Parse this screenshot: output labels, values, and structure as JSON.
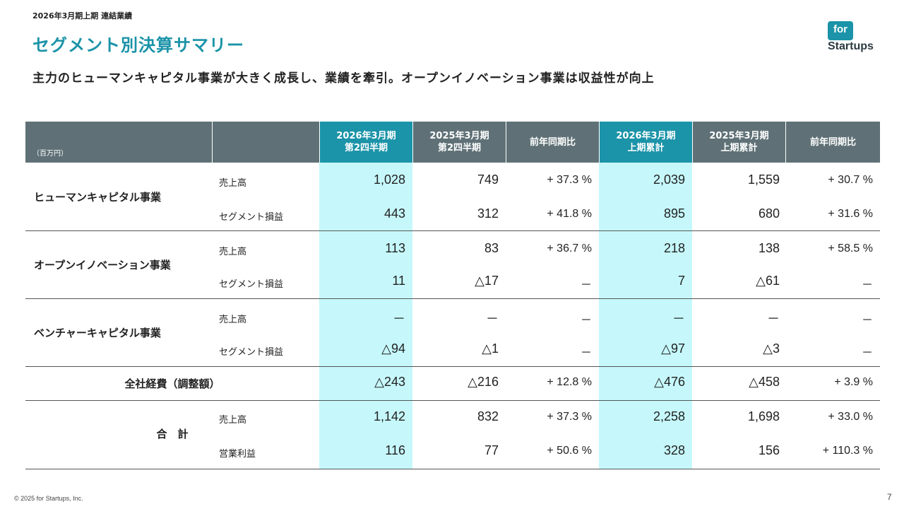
{
  "header": {
    "breadcrumb": "2026年3月期上期 連結業績",
    "title": "セグメント別決算サマリー",
    "subtitle": "主力のヒューマンキャピタル事業が大きく成長し、業績を牽引。オープンイノベーション事業は収益性が向上"
  },
  "logo": {
    "box_text": "for",
    "text": "Startups",
    "color": "#1b93a8"
  },
  "table": {
    "unit": "（百万円）",
    "columns": [
      "2026年3月期\n第2四半期",
      "2025年3月期\n第2四半期",
      "前年同期比",
      "2026年3月期\n上期累計",
      "2025年3月期\n上期累計",
      "前年同期比"
    ],
    "groups": [
      {
        "name": "ヒューマンキャピタル事業",
        "rows": [
          {
            "label": "売上高",
            "values": [
              "1,028",
              "749",
              "+ 37.3 %",
              "2,039",
              "1,559",
              "+ 30.7 %"
            ]
          },
          {
            "label": "セグメント損益",
            "values": [
              "443",
              "312",
              "+ 41.8 %",
              "895",
              "680",
              "+ 31.6 %"
            ]
          }
        ]
      },
      {
        "name": "オープンイノベーション事業",
        "rows": [
          {
            "label": "売上高",
            "values": [
              "113",
              "83",
              "+ 36.7 %",
              "218",
              "138",
              "+ 58.5 %"
            ]
          },
          {
            "label": "セグメント損益",
            "values": [
              "11",
              "△17",
              "－",
              "7",
              "△61",
              "－"
            ]
          }
        ]
      },
      {
        "name": "ベンチャーキャピタル事業",
        "rows": [
          {
            "label": "売上高",
            "values": [
              "－",
              "－",
              "－",
              "－",
              "－",
              "－"
            ]
          },
          {
            "label": "セグメント損益",
            "values": [
              "△94",
              "△1",
              "－",
              "△97",
              "△3",
              "－"
            ]
          }
        ]
      },
      {
        "name": "全社経費（調整額）",
        "rows": [
          {
            "label": "",
            "values": [
              "△243",
              "△216",
              "+ 12.8 %",
              "△476",
              "△458",
              "+ 3.9 %"
            ]
          }
        ]
      },
      {
        "name": "合　計",
        "rows": [
          {
            "label": "売上高",
            "values": [
              "1,142",
              "832",
              "+ 37.3 %",
              "2,258",
              "1,698",
              "+ 33.0 %"
            ]
          },
          {
            "label": "営業利益",
            "values": [
              "116",
              "77",
              "+ 50.6 %",
              "328",
              "156",
              "+ 110.3 %"
            ]
          }
        ]
      }
    ]
  },
  "footer": {
    "copyright": "© 2025 for Startups, Inc.",
    "page": "7"
  }
}
